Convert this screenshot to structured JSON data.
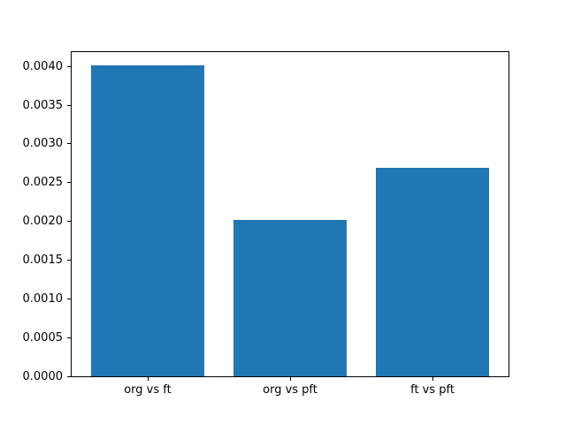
{
  "figure": {
    "background_color": "#ffffff",
    "spine_color": "#000000",
    "tick_label_color": "#000000"
  },
  "chart_data": {
    "type": "bar",
    "title": "",
    "xlabel": "",
    "ylabel": "",
    "categories": [
      "org vs ft",
      "org vs pft",
      "ft vs pft"
    ],
    "values": [
      0.00401,
      0.00202,
      0.00269
    ],
    "bar_color": "#1f77b4",
    "bar_width_fraction": 0.8,
    "xlim": [
      -0.54,
      2.54
    ],
    "ylim": [
      0,
      0.0042
    ],
    "yticks": [
      0.0,
      0.0005,
      0.001,
      0.0015,
      0.002,
      0.0025,
      0.003,
      0.0035,
      0.004
    ],
    "ytick_labels": [
      "0.0000",
      "0.0005",
      "0.0010",
      "0.0015",
      "0.0020",
      "0.0025",
      "0.0030",
      "0.0035",
      "0.0040"
    ],
    "grid": false,
    "legend": null
  }
}
